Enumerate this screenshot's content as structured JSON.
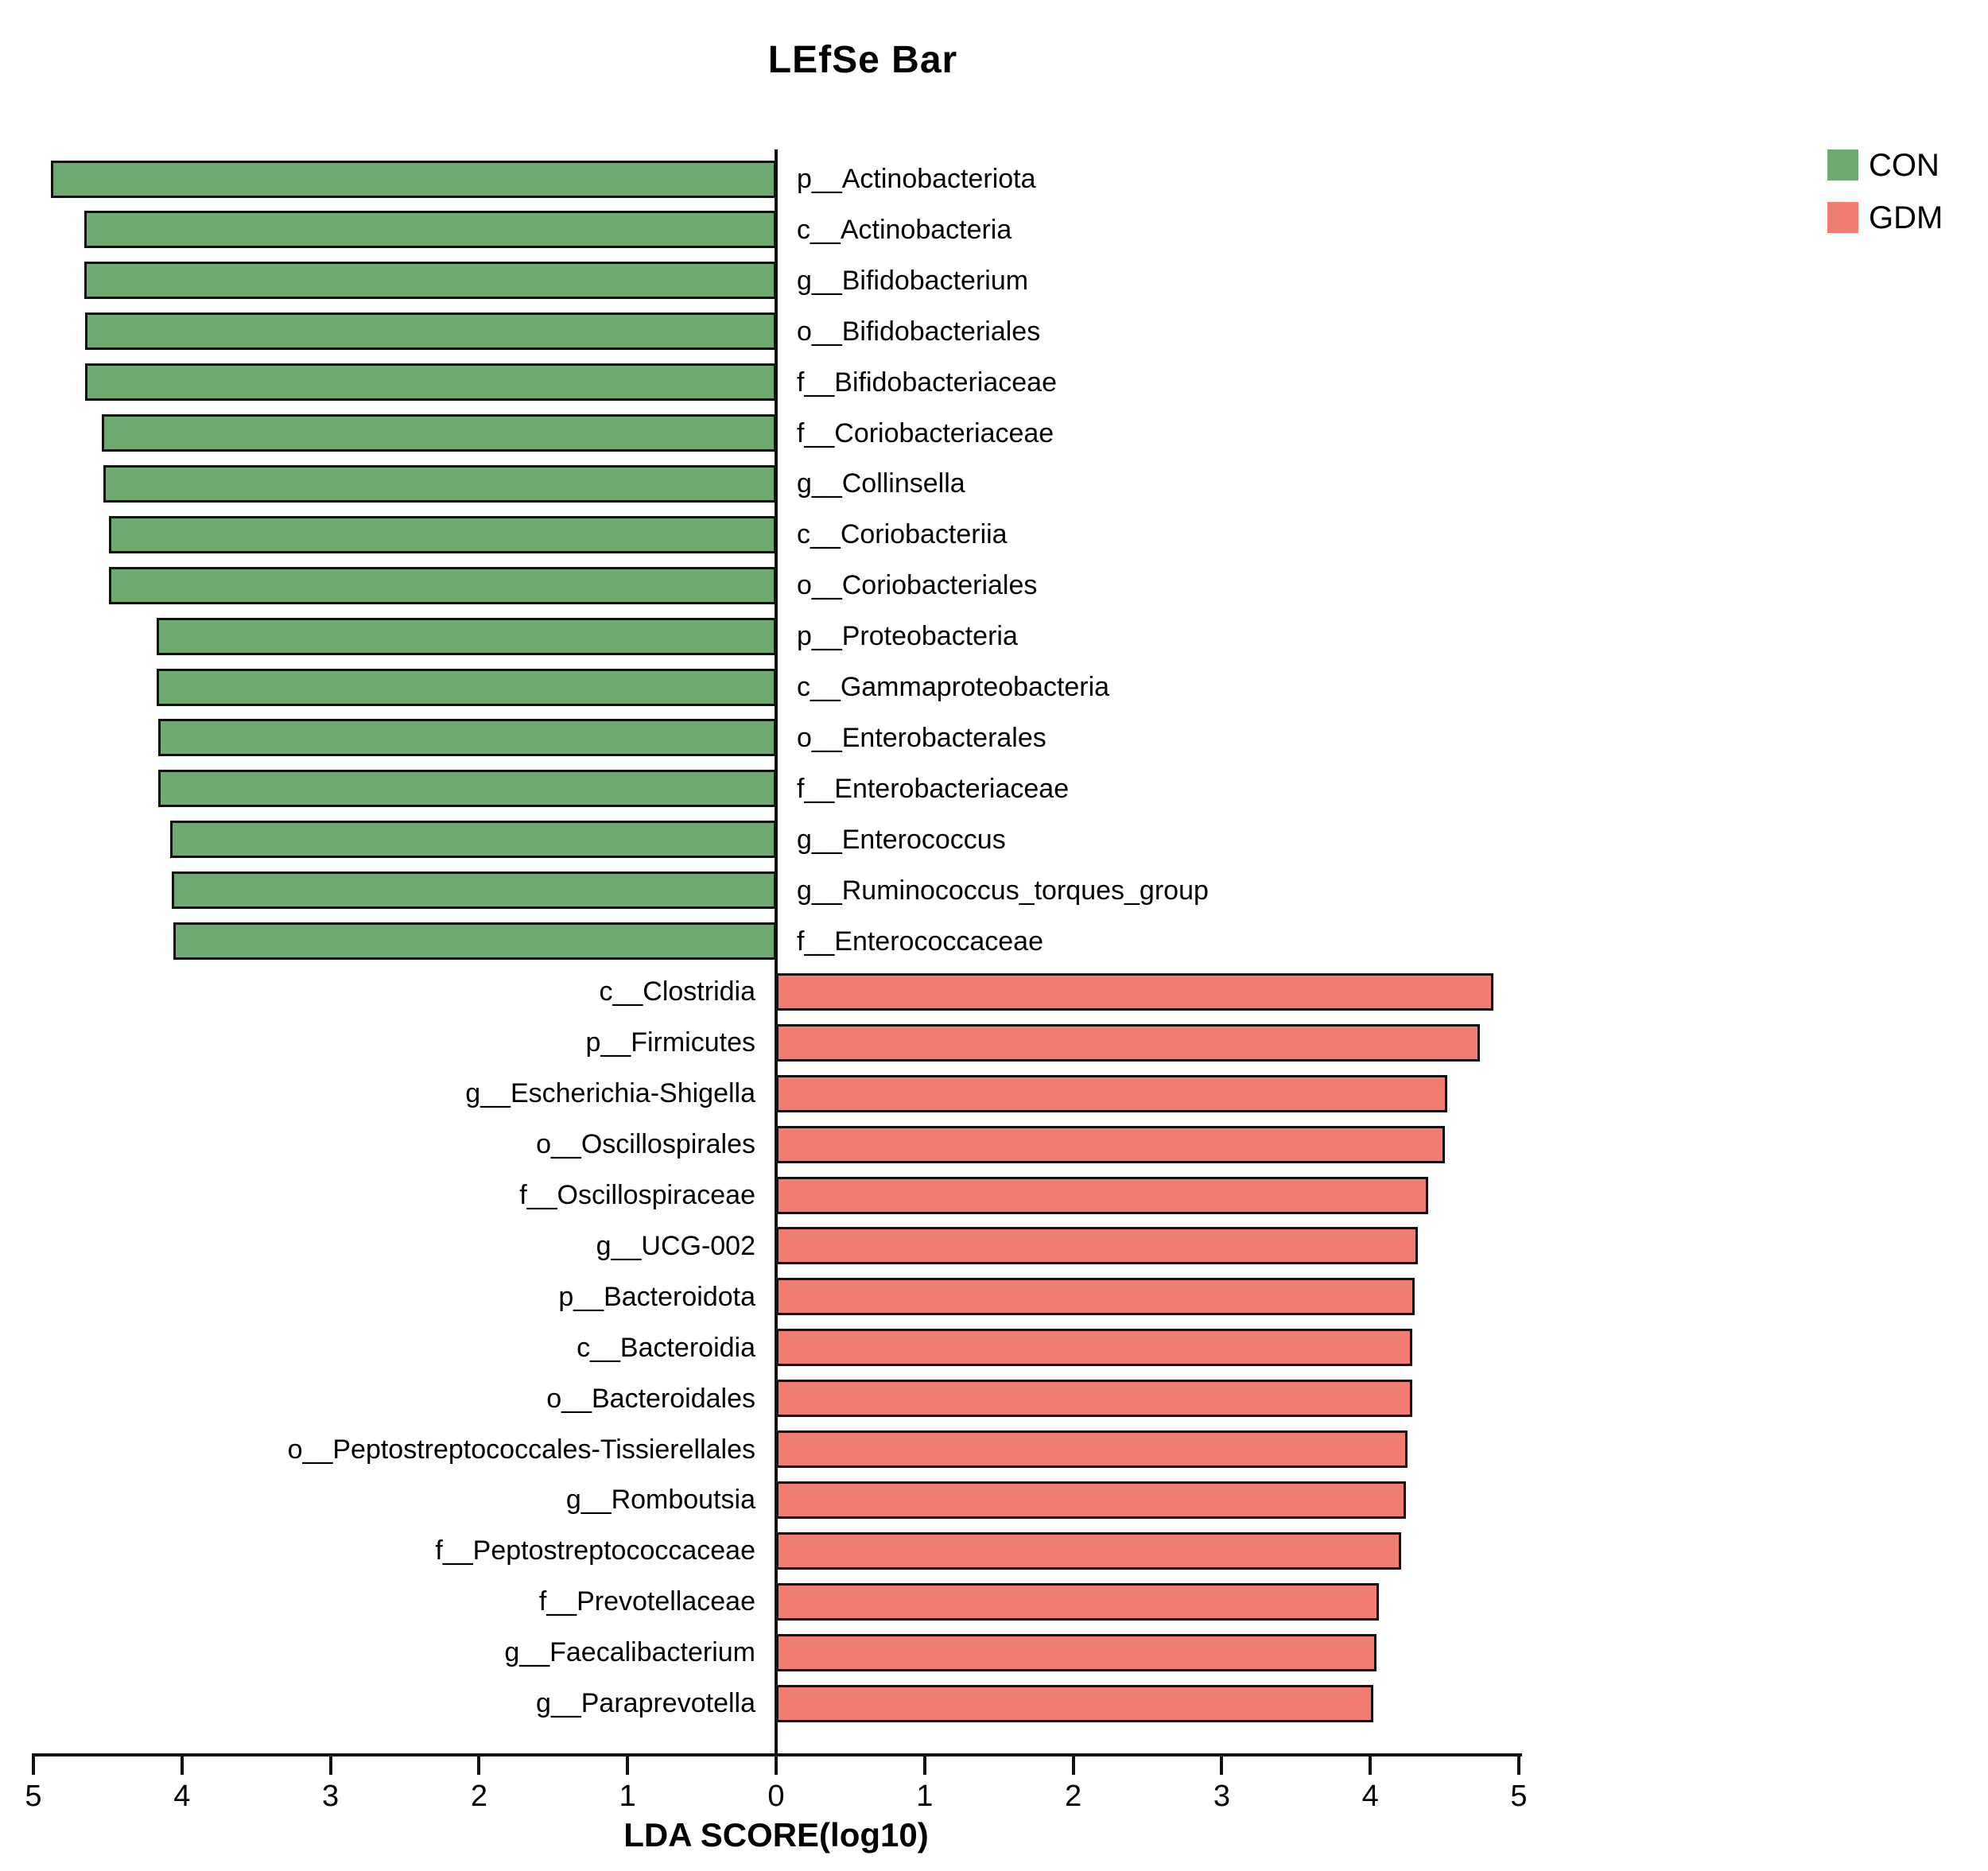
{
  "figure": {
    "title": "LEfSe Bar",
    "axis": {
      "label": "LDA SCORE(log10)",
      "min": -5,
      "max": 5,
      "ticks": [
        {
          "value": -5,
          "label": "5"
        },
        {
          "value": -4,
          "label": "4"
        },
        {
          "value": -3,
          "label": "3"
        },
        {
          "value": -2,
          "label": "2"
        },
        {
          "value": -1,
          "label": "1"
        },
        {
          "value": 0,
          "label": "0"
        },
        {
          "value": 1,
          "label": "1"
        },
        {
          "value": 2,
          "label": "2"
        },
        {
          "value": 3,
          "label": "3"
        },
        {
          "value": 4,
          "label": "4"
        },
        {
          "value": 5,
          "label": "5"
        }
      ]
    },
    "legend": {
      "items": [
        {
          "label": "CON",
          "color": "#6fab71"
        },
        {
          "label": "GDM",
          "color": "#f37c72"
        }
      ]
    },
    "colors": {
      "con_green": "#6fab71",
      "gdm_red": "#f37c72",
      "bar_outline": "#111111"
    }
  },
  "chart_data": {
    "type": "bar",
    "orientation": "horizontal-diverging",
    "title": "LEfSe Bar",
    "xlabel": "LDA SCORE(log10)",
    "xlim": [
      -5,
      5
    ],
    "grid": false,
    "legend_position": "top-right",
    "series": [
      {
        "name": "CON",
        "color": "#6fab71",
        "direction": "left",
        "items": [
          {
            "taxon": "p__Actinobacteriota",
            "lda": 4.88
          },
          {
            "taxon": "c__Actinobacteria",
            "lda": 4.66
          },
          {
            "taxon": "g__Bifidobacterium",
            "lda": 4.66
          },
          {
            "taxon": "o__Bifidobacteriales",
            "lda": 4.65
          },
          {
            "taxon": "f__Bifidobacteriaceae",
            "lda": 4.65
          },
          {
            "taxon": "f__Coriobacteriaceae",
            "lda": 4.54
          },
          {
            "taxon": "g__Collinsella",
            "lda": 4.53
          },
          {
            "taxon": "c__Coriobacteriia",
            "lda": 4.49
          },
          {
            "taxon": "o__Coriobacteriales",
            "lda": 4.49
          },
          {
            "taxon": "p__Proteobacteria",
            "lda": 4.17
          },
          {
            "taxon": "c__Gammaproteobacteria",
            "lda": 4.17
          },
          {
            "taxon": "o__Enterobacterales",
            "lda": 4.16
          },
          {
            "taxon": "f__Enterobacteriaceae",
            "lda": 4.16
          },
          {
            "taxon": "g__Enterococcus",
            "lda": 4.08
          },
          {
            "taxon": "g__Ruminococcus_torques_group",
            "lda": 4.07
          },
          {
            "taxon": "f__Enterococcaceae",
            "lda": 4.06
          }
        ]
      },
      {
        "name": "GDM",
        "color": "#f37c72",
        "direction": "right",
        "items": [
          {
            "taxon": "c__Clostridia",
            "lda": 4.83
          },
          {
            "taxon": "p__Firmicutes",
            "lda": 4.74
          },
          {
            "taxon": "g__Escherichia-Shigella",
            "lda": 4.52
          },
          {
            "taxon": "o__Oscillospirales",
            "lda": 4.5
          },
          {
            "taxon": "f__Oscillospiraceae",
            "lda": 4.39
          },
          {
            "taxon": "g__UCG-002",
            "lda": 4.32
          },
          {
            "taxon": "p__Bacteroidota",
            "lda": 4.3
          },
          {
            "taxon": "c__Bacteroidia",
            "lda": 4.28
          },
          {
            "taxon": "o__Bacteroidales",
            "lda": 4.28
          },
          {
            "taxon": "o__Peptostreptococcales-Tissierellales",
            "lda": 4.25
          },
          {
            "taxon": "g__Romboutsia",
            "lda": 4.24
          },
          {
            "taxon": "f__Peptostreptococcaceae",
            "lda": 4.21
          },
          {
            "taxon": "f__Prevotellaceae",
            "lda": 4.06
          },
          {
            "taxon": "g__Faecalibacterium",
            "lda": 4.04
          },
          {
            "taxon": "g__Paraprevotella",
            "lda": 4.02
          }
        ]
      }
    ]
  }
}
